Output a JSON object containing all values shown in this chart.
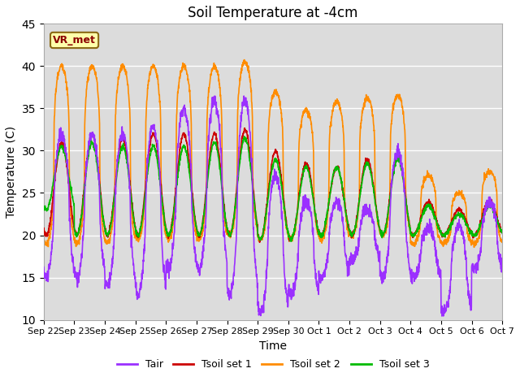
{
  "title": "Soil Temperature at -4cm",
  "xlabel": "Time",
  "ylabel": "Temperature (C)",
  "ylim": [
    10,
    45
  ],
  "annotation": "VR_met",
  "legend": [
    "Tair",
    "Tsoil set 1",
    "Tsoil set 2",
    "Tsoil set 3"
  ],
  "colors": {
    "Tair": "#9B30FF",
    "Tsoil set 1": "#CC0000",
    "Tsoil set 2": "#FF8C00",
    "Tsoil set 3": "#00BB00"
  },
  "background_color": "#DCDCDC",
  "grid_color": "#FFFFFF",
  "xtick_labels": [
    "Sep 22",
    "Sep 23",
    "Sep 24",
    "Sep 25",
    "Sep 26",
    "Sep 27",
    "Sep 28",
    "Sep 29",
    "Sep 30",
    "Oct 1",
    "Oct 2",
    "Oct 3",
    "Oct 4",
    "Oct 5",
    "Oct 6",
    "Oct 7"
  ],
  "line_width": 1.2,
  "title_fontsize": 12,
  "axis_fontsize": 10
}
